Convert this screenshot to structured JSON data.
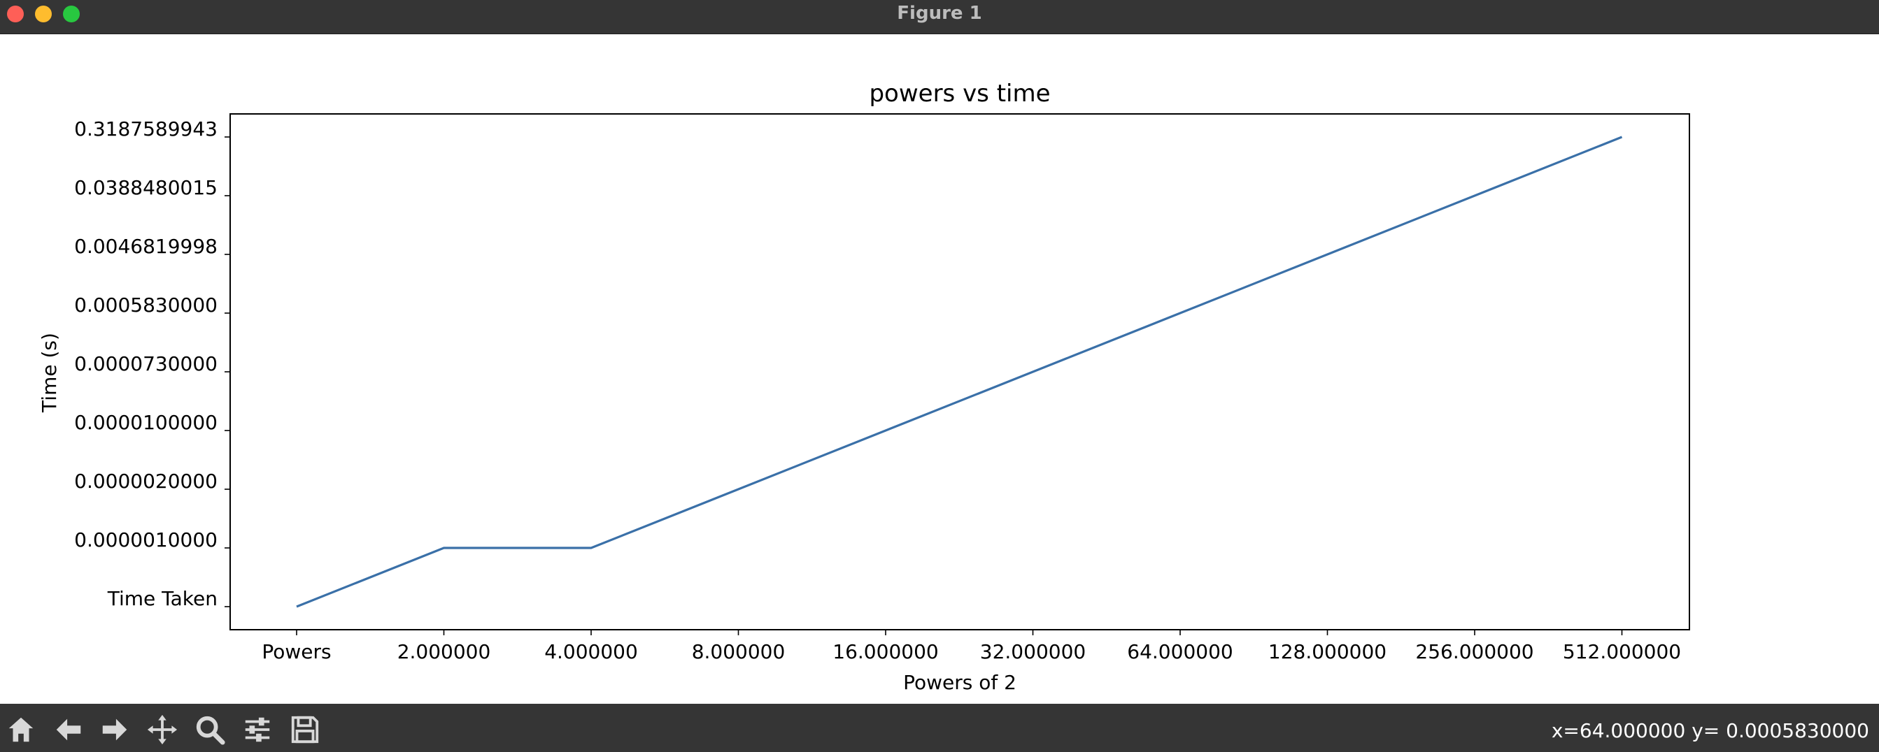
{
  "window": {
    "title": "Figure 1"
  },
  "toolbar": {
    "buttons": [
      {
        "name": "home-button",
        "icon": "home-icon"
      },
      {
        "name": "back-button",
        "icon": "arrow-left-icon"
      },
      {
        "name": "forward-button",
        "icon": "arrow-right-icon"
      },
      {
        "name": "pan-button",
        "icon": "move-icon"
      },
      {
        "name": "zoom-button",
        "icon": "magnifier-icon"
      },
      {
        "name": "configure-subplots-button",
        "icon": "sliders-icon"
      },
      {
        "name": "save-button",
        "icon": "floppy-disk-icon"
      }
    ],
    "status": "x=64.000000 y= 0.0005830000"
  },
  "chart_data": {
    "type": "line",
    "title": "powers vs time",
    "xlabel": "Powers of 2",
    "ylabel": "Time (s)",
    "categories": [
      "Powers",
      "2.000000",
      "4.000000",
      "8.000000",
      "16.000000",
      "32.000000",
      "64.000000",
      "128.000000",
      "256.000000",
      "512.000000"
    ],
    "y_categories": [
      "Time Taken",
      "0.0000010000",
      "0.0000020000",
      "0.0000100000",
      "0.0000730000",
      "0.0005830000",
      "0.0046819998",
      "0.0388480015",
      "0.3187589943"
    ],
    "series": [
      {
        "values": [
          "Time Taken",
          "0.0000010000",
          "0.0000010000",
          "0.0000020000",
          "0.0000100000",
          "0.0000730000",
          "0.0005830000",
          "0.0046819998",
          "0.0388480015",
          "0.3187589943"
        ],
        "color": "#3a70a8"
      }
    ],
    "grid": false,
    "legend": "none"
  }
}
